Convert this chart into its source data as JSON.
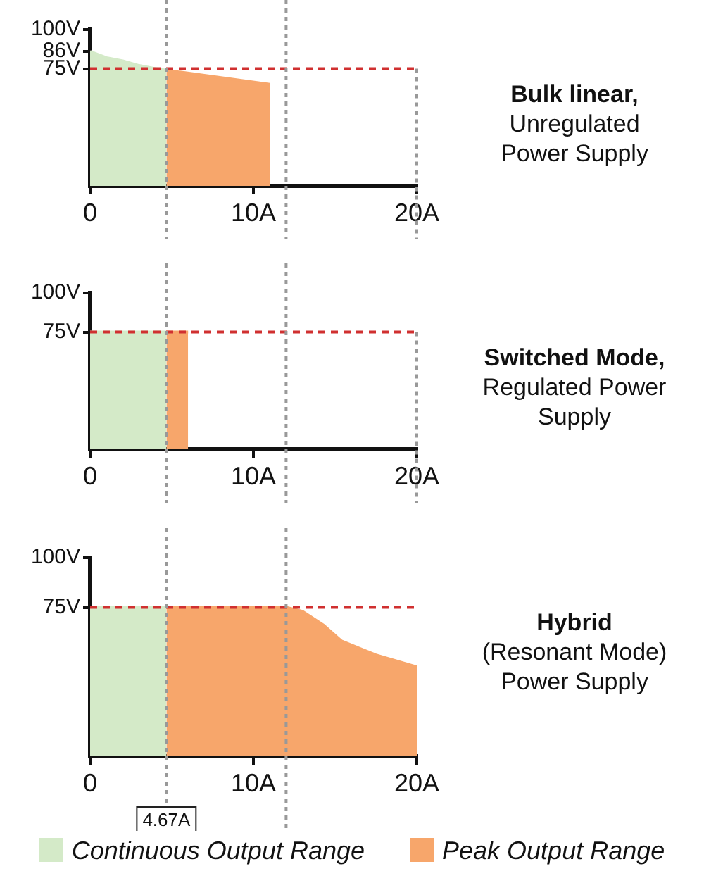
{
  "chart_data": [
    {
      "type": "area",
      "annotations": [
        "Bulk linear,",
        "Unregulated Power Supply"
      ],
      "xlim": [
        0,
        20
      ],
      "ylim": [
        0,
        100
      ],
      "xticks": [
        {
          "value": 0,
          "label": "0"
        },
        {
          "value": 10,
          "label": "10A"
        },
        {
          "value": 20,
          "label": "20A"
        }
      ],
      "yticks": [
        {
          "value": 75,
          "label": "75V"
        },
        {
          "value": 86,
          "label": "86V"
        },
        {
          "value": 100,
          "label": "100V"
        }
      ],
      "grid": false,
      "legend": false,
      "series": [
        {
          "color": "#d4eac8",
          "x": [
            0,
            1,
            2,
            3,
            4,
            4.67
          ],
          "values": [
            86,
            82,
            80,
            77,
            75,
            74
          ]
        },
        {
          "color": "#f7a66b",
          "x": [
            4.67,
            11
          ],
          "values": [
            74,
            65
          ]
        }
      ],
      "ref_lines": [
        {
          "axis": "y",
          "value": 75,
          "color": "#d03030",
          "line_style": "dashed"
        },
        {
          "axis": "x",
          "value": 4.67,
          "color": "#999999",
          "line_style": "dotted"
        },
        {
          "axis": "x",
          "value": 12,
          "color": "#999999",
          "line_style": "dotted"
        },
        {
          "axis": "x",
          "value": 20,
          "color": "#999999",
          "line_style": "dotted"
        }
      ]
    },
    {
      "type": "area",
      "annotations": [
        "Switched Mode,",
        "Regulated Power Supply"
      ],
      "xlim": [
        0,
        20
      ],
      "ylim": [
        0,
        100
      ],
      "xticks": [
        {
          "value": 0,
          "label": "0"
        },
        {
          "value": 10,
          "label": "10A"
        },
        {
          "value": 20,
          "label": "20A"
        }
      ],
      "yticks": [
        {
          "value": 75,
          "label": "75V"
        },
        {
          "value": 100,
          "label": "100V"
        }
      ],
      "grid": false,
      "legend": false,
      "series": [
        {
          "color": "#d4eac8",
          "x": [
            0,
            4.67
          ],
          "values": [
            75,
            75
          ]
        },
        {
          "color": "#f7a66b",
          "x": [
            4.67,
            6
          ],
          "values": [
            75,
            75
          ]
        }
      ],
      "ref_lines": [
        {
          "axis": "y",
          "value": 75,
          "color": "#d03030",
          "line_style": "dashed"
        },
        {
          "axis": "x",
          "value": 4.67,
          "color": "#999999",
          "line_style": "dotted"
        },
        {
          "axis": "x",
          "value": 12,
          "color": "#999999",
          "line_style": "dotted"
        },
        {
          "axis": "x",
          "value": 20,
          "color": "#999999",
          "line_style": "dotted"
        }
      ]
    },
    {
      "type": "area",
      "annotations": [
        "Hybrid",
        "(Resonant Mode) Power Supply"
      ],
      "xlim": [
        0,
        20
      ],
      "ylim": [
        0,
        100
      ],
      "xticks": [
        {
          "value": 0,
          "label": "0"
        },
        {
          "value": 10,
          "label": "10A"
        },
        {
          "value": 20,
          "label": "20A"
        }
      ],
      "yticks": [
        {
          "value": 75,
          "label": "75V"
        },
        {
          "value": 100,
          "label": "100V"
        }
      ],
      "grid": false,
      "legend": "bottom",
      "series": [
        {
          "name": "Continuous Output Range",
          "color": "#d4eac8",
          "x": [
            0,
            4.67
          ],
          "values": [
            75,
            75
          ]
        },
        {
          "name": "Peak Output Range",
          "color": "#f7a66b",
          "x": [
            4.67,
            12,
            13,
            14.3,
            15.4,
            17.5,
            20
          ],
          "values": [
            75,
            75,
            73,
            66,
            58,
            51,
            45
          ]
        }
      ],
      "ref_lines": [
        {
          "axis": "y",
          "value": 75,
          "color": "#d03030",
          "line_style": "dashed"
        },
        {
          "axis": "x",
          "value": 4.67,
          "label": "4.67A",
          "color": "#999999",
          "line_style": "dotted"
        },
        {
          "axis": "x",
          "value": 12,
          "color": "#999999",
          "line_style": "dotted"
        }
      ]
    }
  ]
}
